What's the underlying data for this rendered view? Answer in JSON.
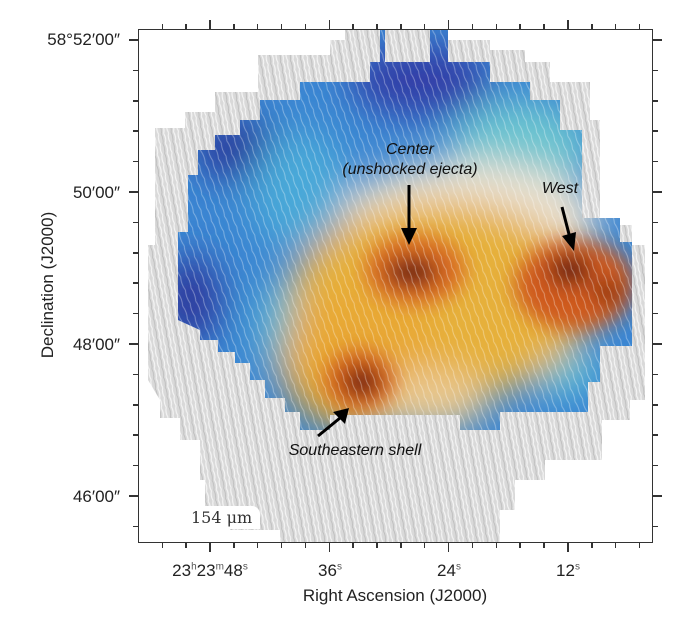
{
  "chart_data": {
    "type": "heatmap",
    "title": "",
    "xlabel": "Right Ascension (J2000)",
    "ylabel": "Declination (J2000)",
    "x_ticks": [
      "23h23m48s",
      "36s",
      "24s",
      "12s"
    ],
    "y_ticks": [
      "58°52′00″",
      "50′00″",
      "48′00″",
      "46′00″"
    ],
    "wavelength_label": "154 μm",
    "colormap": "blue (low) → cyan → white → yellow → orange → dark red (high), overlaid with magnetic field streamlines (LIC texture); grey streamlines outside masked region",
    "annotations": [
      {
        "text": "Center\n(unshocked ejecta)",
        "target": "central dark red peak"
      },
      {
        "text": "West",
        "target": "western dark red peak"
      },
      {
        "text": "Southeastern shell",
        "target": "southeastern dark red peak"
      }
    ],
    "grid": false,
    "legend": null
  },
  "axes": {
    "x": {
      "title": "Right Ascension (J2000)",
      "ticks": [
        {
          "h": "23",
          "m": "23",
          "s": "48",
          "label_main": "23",
          "sup_h": "h",
          "label_mid": "23",
          "sup_m": "m",
          "label_end": "48",
          "sup_s": "s"
        },
        {
          "label_end": "36",
          "sup_s": "s"
        },
        {
          "label_end": "24",
          "sup_s": "s"
        },
        {
          "label_end": "12",
          "sup_s": "s"
        }
      ]
    },
    "y": {
      "title": "Declination (J2000)",
      "ticks": [
        "58°52′00″",
        "50′00″",
        "48′00″",
        "46′00″"
      ]
    }
  },
  "annotations": {
    "center_line1": "Center",
    "center_line2": "(unshocked ejecta)",
    "west": "West",
    "se_shell": "Southeastern shell"
  },
  "scale_label": "154 μm",
  "colors": {
    "dark_blue": "#2f3f9e",
    "blue": "#3a8fd6",
    "cyan": "#5cc0d6",
    "white": "#e8e4dc",
    "yellow": "#e8b030",
    "orange": "#d86a20",
    "dark_red": "#5a1a10",
    "grey_mask": "#d6d6d6"
  }
}
